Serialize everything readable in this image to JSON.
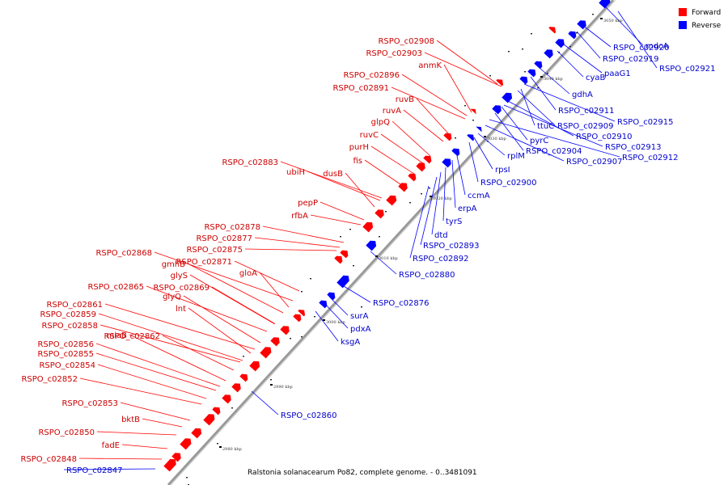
{
  "title": "Ralstonia solanacearum Po82, complete genome. - 0..3481091",
  "legend": [
    {
      "label": "Forward",
      "color": "#ff0000"
    },
    {
      "label": "Reverse",
      "color": "#0000ff"
    }
  ],
  "colors": {
    "forward": "#ff0000",
    "reverse": "#0000ff",
    "forward_text": "#cc0000",
    "reverse_text": "#0000cc",
    "backbone": "#999999"
  },
  "ticks": [
    "2980 kbp",
    "2990 kbp",
    "3000 kbp",
    "3010 kbp",
    "3020 kbp",
    "3030 kbp",
    "3040 kbp",
    "3050 kbp"
  ],
  "forward_labels": [
    "RSPO_c02908",
    "RSPO_c02903",
    "anmK",
    "RSPO_c02896",
    "RSPO_c02891",
    "ruvB",
    "ruvA",
    "glpQ",
    "ruvC",
    "purH",
    "fis",
    "RSPO_c02883",
    "ubiH",
    "dusB",
    "pepP",
    "rfbA",
    "RSPO_c02878",
    "RSPO_c02877",
    "RSPO_c02875",
    "RSPO_c02868",
    "RSPO_c02871",
    "gmhB",
    "gloA",
    "glyS",
    "RSPO_c02865",
    "RSPO_c02869",
    "glyQ",
    "RSPO_c02861",
    "lnt",
    "RSPO_c02859",
    "RSPO_c02858",
    "miaB",
    "RSPO_c02862",
    "RSPO_c02856",
    "RSPO_c02855",
    "RSPO_c02854",
    "RSPO_c02852",
    "RSPO_c02853",
    "bktB",
    "RSPO_c02850",
    "fadE",
    "RSPO_c02848"
  ],
  "reverse_labels": [
    "mdcA",
    "RSPO_c02921",
    "RSPO_c02920",
    "RSPO_c02919",
    "paaG1",
    "cyaB",
    "gdhA",
    "RSPO_c02911",
    "RSPO_c02915",
    "RSPO_c02909",
    "ttuC",
    "RSPO_c02910",
    "RSPO_c02913",
    "pyrC",
    "RSPO_c02904",
    "RSPO_c02912",
    "RSPO_c02907",
    "rplM",
    "rpsI",
    "RSPO_c02900",
    "ccmA",
    "erpA",
    "tyrS",
    "dtd",
    "RSPO_c02893",
    "RSPO_c02892",
    "RSPO_c02880",
    "RSPO_c02876",
    "surA",
    "pdxA",
    "ksgA",
    "RSPO_c02860",
    "RSPO_c02847"
  ]
}
